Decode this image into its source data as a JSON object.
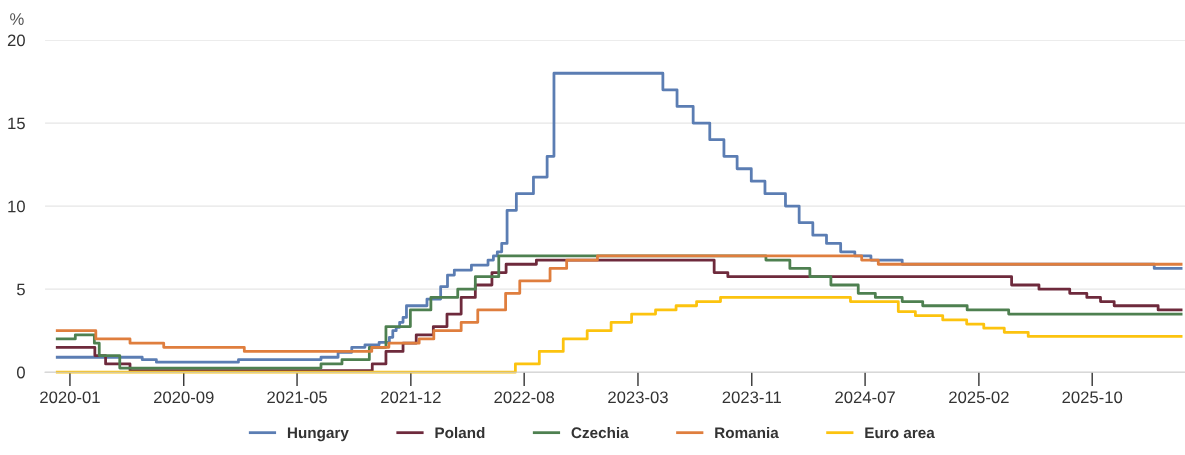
{
  "chart_data": {
    "type": "step",
    "ylabel": "%",
    "xlim": [
      "2019-12-07",
      "2026-04-28"
    ],
    "ylim": [
      0,
      20
    ],
    "yticks": [
      0,
      5,
      10,
      15,
      20
    ],
    "xticks": [
      {
        "value": "2020-01-27",
        "label": "2020-01"
      },
      {
        "value": "2020-09-16",
        "label": "2020-09"
      },
      {
        "value": "2021-05-06",
        "label": "2021-05"
      },
      {
        "value": "2021-12-25",
        "label": "2021-12"
      },
      {
        "value": "2022-08-14",
        "label": "2022-08"
      },
      {
        "value": "2023-04-04",
        "label": "2023-03"
      },
      {
        "value": "2023-11-23",
        "label": "2023-11"
      },
      {
        "value": "2024-07-12",
        "label": "2024-07"
      },
      {
        "value": "2025-03-02",
        "label": "2025-02"
      },
      {
        "value": "2025-10-20",
        "label": "2025-10"
      }
    ],
    "grid": "y",
    "legend": "bottom",
    "marker": "none",
    "line_style": "solid",
    "series": [
      {
        "name": "Hungary",
        "color": "#5b7db3",
        "x": [
          "2020-01-01",
          "2020-06-23",
          "2020-07-22",
          "2021-01-06",
          "2021-06-24",
          "2021-07-29",
          "2021-08-26",
          "2021-09-22",
          "2021-10-21",
          "2021-11-11",
          "2021-11-18",
          "2021-11-25",
          "2021-12-02",
          "2021-12-09",
          "2021-12-16",
          "2022-01-27",
          "2022-02-24",
          "2022-03-10",
          "2022-03-24",
          "2022-04-28",
          "2022-06-01",
          "2022-06-12",
          "2022-06-20",
          "2022-06-29",
          "2022-07-10",
          "2022-07-29",
          "2022-09-02",
          "2022-09-30",
          "2022-10-14",
          "2023-05-25",
          "2023-06-23",
          "2023-07-26",
          "2023-08-29",
          "2023-09-27",
          "2023-10-24",
          "2023-11-22",
          "2023-12-20",
          "2024-01-31",
          "2024-02-28",
          "2024-03-27",
          "2024-04-24",
          "2024-05-23",
          "2024-06-21",
          "2024-07-24",
          "2024-09-26",
          "2026-02-24",
          "2026-04-20"
        ],
        "values": [
          0.9,
          0.75,
          0.6,
          0.75,
          0.9,
          1.2,
          1.5,
          1.65,
          1.8,
          2.1,
          2.5,
          2.7,
          3.0,
          3.3,
          4.0,
          4.4,
          5.15,
          5.85,
          6.15,
          6.45,
          6.75,
          7.0,
          7.25,
          7.75,
          9.75,
          10.75,
          11.75,
          13.0,
          18.0,
          17.0,
          16.0,
          15.0,
          14.0,
          13.0,
          12.25,
          11.5,
          10.75,
          10.0,
          9.0,
          8.25,
          7.75,
          7.25,
          7.0,
          6.75,
          6.5,
          6.25,
          6.25
        ]
      },
      {
        "name": "Poland",
        "color": "#6e2a3c",
        "x": [
          "2020-01-01",
          "2020-03-18",
          "2020-04-09",
          "2020-05-29",
          "2021-10-07",
          "2021-11-04",
          "2021-12-09",
          "2022-01-05",
          "2022-02-09",
          "2022-03-09",
          "2022-04-07",
          "2022-05-06",
          "2022-06-09",
          "2022-07-08",
          "2022-09-08",
          "2023-09-07",
          "2023-10-05",
          "2025-05-08",
          "2025-07-03",
          "2025-09-04",
          "2025-10-09",
          "2025-11-06",
          "2025-12-04",
          "2026-03-04",
          "2026-04-20"
        ],
        "values": [
          1.5,
          1.0,
          0.5,
          0.1,
          0.5,
          1.25,
          1.75,
          2.25,
          2.75,
          3.5,
          4.5,
          5.25,
          6.0,
          6.5,
          6.75,
          6.0,
          5.75,
          5.25,
          5.0,
          4.75,
          4.5,
          4.25,
          4.0,
          3.75,
          3.75
        ]
      },
      {
        "name": "Czechia",
        "color": "#4e8050",
        "x": [
          "2020-01-01",
          "2020-02-07",
          "2020-03-17",
          "2020-03-27",
          "2020-05-08",
          "2021-06-24",
          "2021-08-06",
          "2021-10-01",
          "2021-11-04",
          "2021-12-24",
          "2022-02-04",
          "2022-03-31",
          "2022-05-06",
          "2022-06-23",
          "2023-12-22",
          "2024-02-09",
          "2024-03-21",
          "2024-05-03",
          "2024-06-28",
          "2024-08-02",
          "2024-09-26",
          "2024-11-07",
          "2025-02-06",
          "2025-05-02",
          "2026-04-20"
        ],
        "values": [
          2.0,
          2.25,
          1.75,
          1.0,
          0.25,
          0.5,
          0.75,
          1.5,
          2.75,
          3.75,
          4.5,
          5.0,
          5.75,
          7.0,
          6.75,
          6.25,
          5.75,
          5.25,
          4.75,
          4.5,
          4.25,
          4.0,
          3.75,
          3.5,
          3.5
        ]
      },
      {
        "name": "Romania",
        "color": "#df7e3e",
        "x": [
          "2020-01-01",
          "2020-03-20",
          "2020-05-29",
          "2020-08-06",
          "2021-01-18",
          "2021-10-06",
          "2021-11-10",
          "2022-01-11",
          "2022-02-10",
          "2022-04-07",
          "2022-05-11",
          "2022-07-07",
          "2022-08-05",
          "2022-10-06",
          "2022-11-09",
          "2023-01-11",
          "2024-07-05",
          "2024-08-08",
          "2026-04-20"
        ],
        "values": [
          2.5,
          2.0,
          1.75,
          1.5,
          1.25,
          1.5,
          1.75,
          2.0,
          2.5,
          3.0,
          3.75,
          4.75,
          5.5,
          6.25,
          6.75,
          7.0,
          6.75,
          6.5,
          6.5
        ]
      },
      {
        "name": "Euro area",
        "color": "#fcc30f",
        "x": [
          "2020-01-01",
          "2022-07-27",
          "2022-09-14",
          "2022-11-02",
          "2022-12-21",
          "2023-02-08",
          "2023-03-22",
          "2023-05-10",
          "2023-06-21",
          "2023-08-02",
          "2023-09-20",
          "2024-06-12",
          "2024-09-18",
          "2024-10-23",
          "2024-12-18",
          "2025-02-05",
          "2025-03-12",
          "2025-04-23",
          "2025-06-11",
          "2026-04-20"
        ],
        "values": [
          0.0,
          0.5,
          1.25,
          2.0,
          2.5,
          3.0,
          3.5,
          3.75,
          4.0,
          4.25,
          4.5,
          4.25,
          3.65,
          3.4,
          3.15,
          2.9,
          2.65,
          2.4,
          2.15,
          2.15
        ]
      }
    ]
  }
}
